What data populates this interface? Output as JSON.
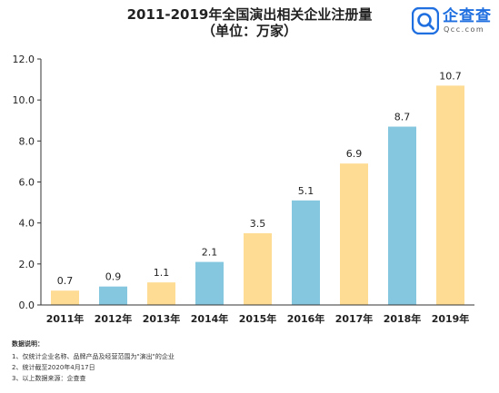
{
  "title": {
    "line1": "2011-2019年全国演出相关企业注册量",
    "line2": "（单位：万家）"
  },
  "logo": {
    "name": "企查查",
    "domain": "Qcc.com",
    "color": "#1f6fe0"
  },
  "notes": {
    "heading": "数据说明：",
    "items": [
      "1、仅统计企业名称、品牌产品及经营范围为\"演出\"的企业",
      "2、统计截至2020年4月17日",
      "3、以上数据来源：企查查"
    ]
  },
  "colors": {
    "yellow": "#fedc94",
    "blue": "#86c7e0"
  },
  "chart_data": {
    "type": "bar",
    "categories": [
      "2011年",
      "2012年",
      "2013年",
      "2014年",
      "2015年",
      "2016年",
      "2017年",
      "2018年",
      "2019年"
    ],
    "values": [
      0.7,
      0.9,
      1.1,
      2.1,
      3.5,
      5.1,
      6.9,
      8.7,
      10.7
    ],
    "labels": [
      "0.7",
      "0.9",
      "1.1",
      "2.1",
      "3.5",
      "5.1",
      "6.9",
      "8.7",
      "10.7"
    ],
    "bar_colors": [
      "yellow",
      "blue",
      "yellow",
      "blue",
      "yellow",
      "blue",
      "yellow",
      "blue",
      "yellow"
    ],
    "y_ticks": [
      "0.0",
      "2.0",
      "4.0",
      "6.0",
      "8.0",
      "10.0",
      "12.0"
    ],
    "ylim": [
      0,
      12
    ],
    "xlabel": "",
    "ylabel": "",
    "grid": false,
    "legend": false
  }
}
